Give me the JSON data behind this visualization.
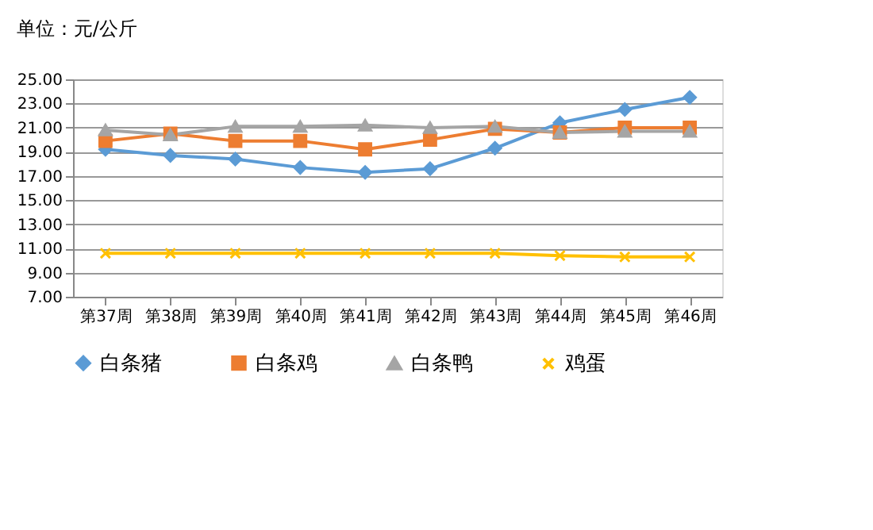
{
  "chart_data": {
    "type": "line",
    "title": "单位：元/公斤",
    "categories": [
      "第37周",
      "第38周",
      "第39周",
      "第40周",
      "第41周",
      "第42周",
      "第43周",
      "第44周",
      "第45周",
      "第46周"
    ],
    "series": [
      {
        "name": "白条猪",
        "color": "#5b9bd5",
        "marker": "diamond",
        "values": [
          19.2,
          18.7,
          18.4,
          17.7,
          17.3,
          17.6,
          19.3,
          21.4,
          22.5,
          23.5
        ]
      },
      {
        "name": "白条鸡",
        "color": "#ed7d31",
        "marker": "square",
        "values": [
          19.9,
          20.5,
          19.9,
          19.9,
          19.2,
          20.0,
          20.9,
          20.6,
          21.0,
          21.0
        ]
      },
      {
        "name": "白条鸭",
        "color": "#a5a5a5",
        "marker": "triangle",
        "values": [
          20.8,
          20.4,
          21.1,
          21.1,
          21.2,
          21.0,
          21.1,
          20.6,
          20.7,
          20.7
        ]
      },
      {
        "name": "鸡蛋",
        "color": "#ffc000",
        "marker": "cross",
        "values": [
          10.6,
          10.6,
          10.6,
          10.6,
          10.6,
          10.6,
          10.6,
          10.4,
          10.3,
          10.3
        ]
      }
    ],
    "ylim": [
      7,
      25
    ],
    "yticks": [
      {
        "value": 7,
        "label": "7.00"
      },
      {
        "value": 9,
        "label": "9.00"
      },
      {
        "value": 11,
        "label": "11.00"
      },
      {
        "value": 13,
        "label": "13.00"
      },
      {
        "value": 15,
        "label": "15.00"
      },
      {
        "value": 17,
        "label": "17.00"
      },
      {
        "value": 19,
        "label": "19.00"
      },
      {
        "value": 21,
        "label": "21.00"
      },
      {
        "value": 23,
        "label": "23.00"
      },
      {
        "value": 25,
        "label": "25.00"
      }
    ],
    "grid": "y",
    "legend": "bottom",
    "line_style": "solid"
  }
}
